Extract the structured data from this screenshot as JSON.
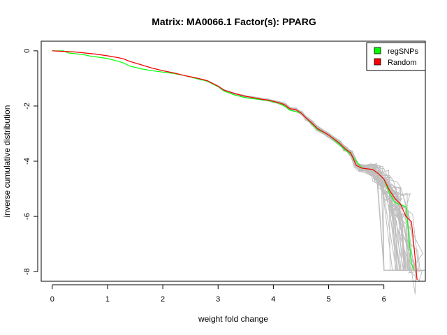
{
  "chart_data": {
    "type": "line",
    "title": "Matrix: MA0066.1 Factor(s): PPARG",
    "xlabel": "weight fold change",
    "ylabel": "inverse cumulative distribution",
    "xlim": [
      -0.2,
      6.75
    ],
    "ylim": [
      -8.35,
      0.35
    ],
    "x_ticks": [
      0,
      1,
      2,
      3,
      4,
      5,
      6
    ],
    "y_ticks": [
      0,
      -2,
      -4,
      -6,
      -8
    ],
    "grid": false,
    "legend_position": "top-right",
    "legend": [
      {
        "label": "regSNPs",
        "color": "#00ff00"
      },
      {
        "label": "Random",
        "color": "#ff0000"
      }
    ],
    "background_series_color": "#bebebe",
    "background_series_count": 40,
    "series": [
      {
        "name": "regSNPs",
        "color": "#00ff00",
        "x": [
          0,
          0.2,
          0.3,
          0.4,
          0.6,
          0.7,
          0.8,
          1.0,
          1.2,
          1.3,
          1.4,
          1.6,
          1.8,
          2.0,
          2.2,
          2.4,
          2.6,
          2.8,
          3.0,
          3.1,
          3.3,
          3.5,
          3.7,
          3.9,
          4.1,
          4.2,
          4.3,
          4.5,
          4.6,
          4.7,
          4.8,
          5.0,
          5.2,
          5.3,
          5.4,
          5.5,
          5.6,
          5.8,
          5.9,
          6.0,
          6.1,
          6.2,
          6.4,
          6.5,
          6.55
        ],
        "y": [
          0,
          0,
          -0.08,
          -0.1,
          -0.15,
          -0.2,
          -0.22,
          -0.28,
          -0.38,
          -0.45,
          -0.55,
          -0.65,
          -0.72,
          -0.77,
          -0.82,
          -0.9,
          -1.0,
          -1.1,
          -1.3,
          -1.45,
          -1.6,
          -1.7,
          -1.75,
          -1.8,
          -1.9,
          -2.0,
          -2.15,
          -2.25,
          -2.45,
          -2.65,
          -2.85,
          -3.05,
          -3.4,
          -3.6,
          -3.75,
          -4.0,
          -4.25,
          -4.3,
          -4.45,
          -4.65,
          -5.15,
          -5.5,
          -5.65,
          -7.7,
          -7.95
        ]
      },
      {
        "name": "Random",
        "color": "#ff0000",
        "x": [
          0,
          0.2,
          0.4,
          0.6,
          0.8,
          1.0,
          1.2,
          1.3,
          1.4,
          1.6,
          1.8,
          2.0,
          2.2,
          2.4,
          2.6,
          2.8,
          3.0,
          3.1,
          3.3,
          3.5,
          3.6,
          3.7,
          3.8,
          3.9,
          4.0,
          4.1,
          4.2,
          4.3,
          4.4,
          4.5,
          4.6,
          4.7,
          4.8,
          5.0,
          5.2,
          5.3,
          5.4,
          5.5,
          5.6,
          5.8,
          5.9,
          6.0,
          6.1,
          6.2,
          6.3,
          6.4,
          6.5,
          6.55,
          6.6
        ],
        "y": [
          0,
          -0.02,
          -0.04,
          -0.08,
          -0.12,
          -0.18,
          -0.25,
          -0.3,
          -0.38,
          -0.5,
          -0.62,
          -0.72,
          -0.8,
          -0.9,
          -0.98,
          -1.08,
          -1.28,
          -1.42,
          -1.55,
          -1.65,
          -1.68,
          -1.72,
          -1.76,
          -1.78,
          -1.83,
          -1.88,
          -1.95,
          -2.1,
          -2.12,
          -2.25,
          -2.45,
          -2.62,
          -2.82,
          -3.05,
          -3.35,
          -3.55,
          -3.7,
          -4.15,
          -4.25,
          -4.3,
          -4.45,
          -4.65,
          -5.05,
          -5.35,
          -5.55,
          -6.0,
          -6.2,
          -7.2,
          -8.3
        ]
      }
    ]
  }
}
